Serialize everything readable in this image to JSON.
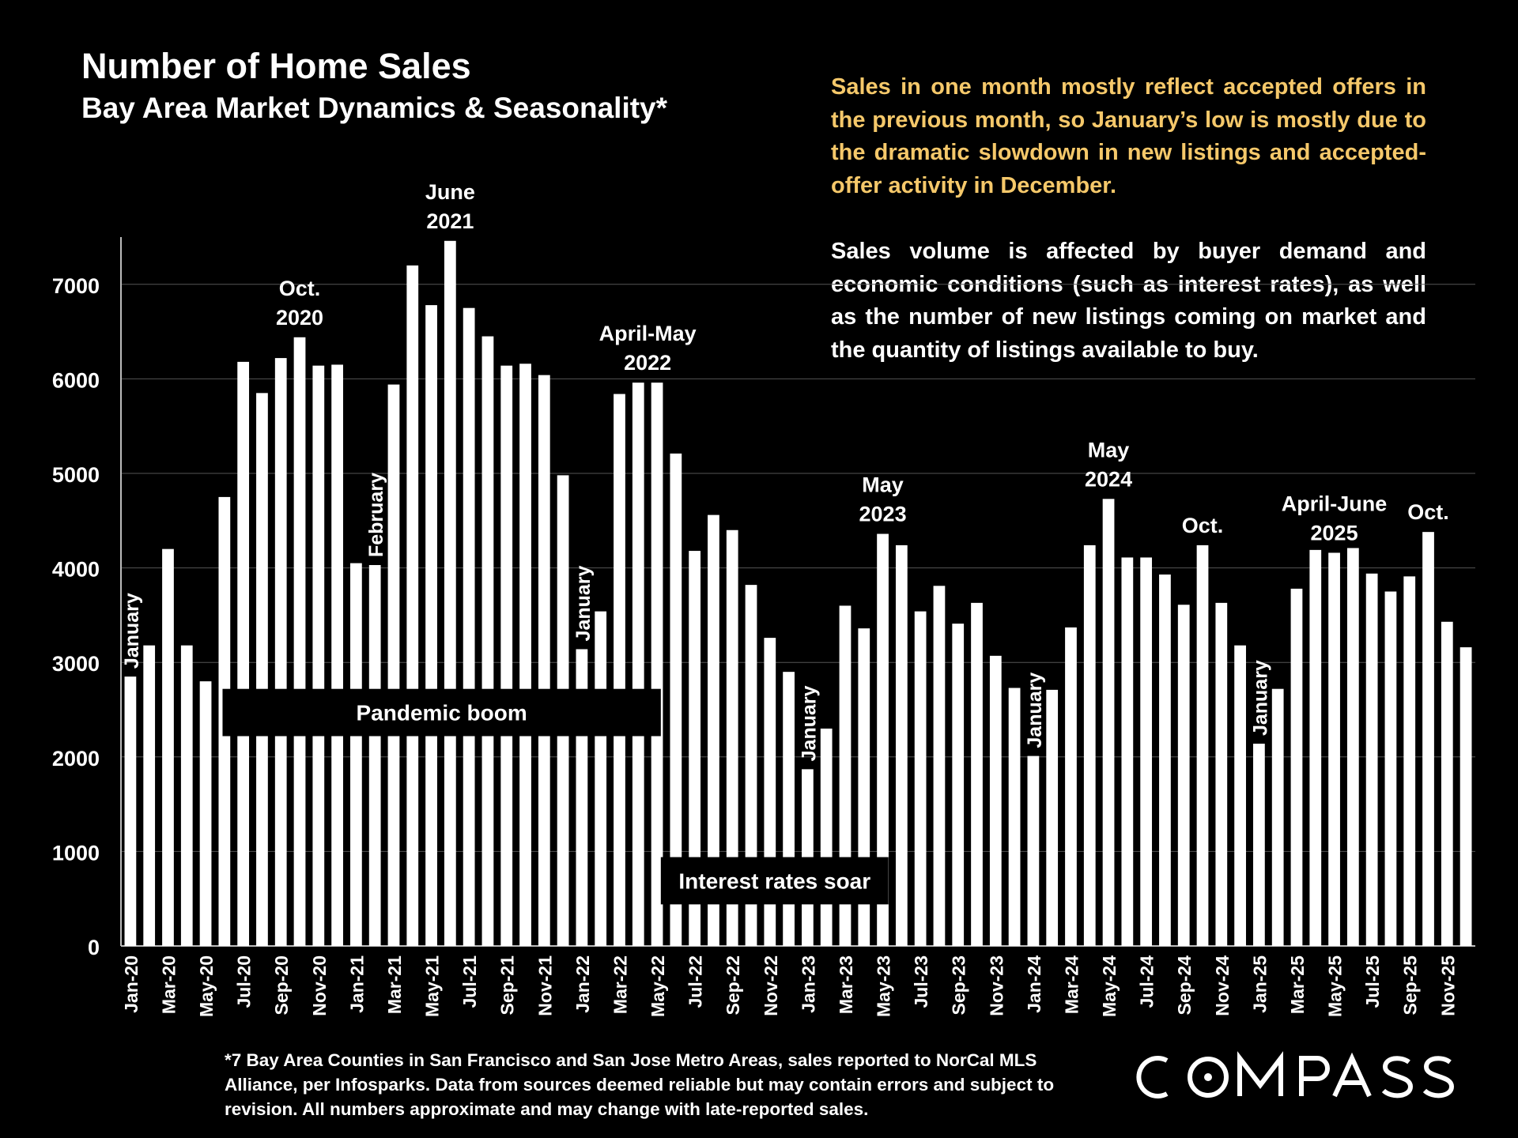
{
  "header": {
    "title": "Number of Home Sales",
    "subtitle": "Bay Area Market Dynamics & Seasonality*"
  },
  "notes": {
    "highlight": "Sales in one month mostly reflect accepted offers in the previous month, so January’s low is mostly due to the dramatic slowdown in new listings and accepted-offer activity in December.",
    "body": "Sales volume is affected by buyer demand and economic conditions (such as interest rates), as well as the number of new listings coming on market and the quantity of listings available to buy."
  },
  "footnote": "*7 Bay Area Counties in San Francisco and San Jose Metro Areas, sales reported to NorCal MLS Alliance, per Infosparks.  Data from sources deemed reliable but may contain errors and subject to revision. All numbers approximate and may change with late-reported sales.",
  "logo": {
    "text": "COMPASS",
    "icon": "compass-o-icon"
  },
  "colors": {
    "background": "#000000",
    "bar": "#ffffff",
    "highlight_text": "#f5c86a",
    "text": "#ffffff"
  },
  "chart_data": {
    "type": "bar",
    "title": "Number of Home Sales",
    "subtitle": "Bay Area Market Dynamics & Seasonality*",
    "xlabel": "",
    "ylabel": "",
    "ylim": [
      0,
      7500
    ],
    "yticks": [
      0,
      1000,
      2000,
      3000,
      4000,
      5000,
      6000,
      7000
    ],
    "grid": true,
    "legend": "none",
    "x_tick_labels": [
      "Jan-20",
      "Mar-20",
      "May-20",
      "Jul-20",
      "Sep-20",
      "Nov-20",
      "Jan-21",
      "Mar-21",
      "May-21",
      "Jul-21",
      "Sep-21",
      "Nov-21",
      "Jan-22",
      "Mar-22",
      "May-22",
      "Jul-22",
      "Sep-22",
      "Nov-22",
      "Jan-23",
      "Mar-23",
      "May-23",
      "Jul-23",
      "Sep-23",
      "Nov-23",
      "Jan-24",
      "Mar-24",
      "May-24",
      "Jul-24",
      "Sep-24",
      "Nov-24",
      "Jan-25",
      "Mar-25",
      "May-25",
      "Jul-25",
      "Sep-25",
      "Nov-25"
    ],
    "categories": [
      "Jan-20",
      "Feb-20",
      "Mar-20",
      "Apr-20",
      "May-20",
      "Jun-20",
      "Jul-20",
      "Aug-20",
      "Sep-20",
      "Oct-20",
      "Nov-20",
      "Dec-20",
      "Jan-21",
      "Feb-21",
      "Mar-21",
      "Apr-21",
      "May-21",
      "Jun-21",
      "Jul-21",
      "Aug-21",
      "Sep-21",
      "Oct-21",
      "Nov-21",
      "Dec-21",
      "Jan-22",
      "Feb-22",
      "Mar-22",
      "Apr-22",
      "May-22",
      "Jun-22",
      "Jul-22",
      "Aug-22",
      "Sep-22",
      "Oct-22",
      "Nov-22",
      "Dec-22",
      "Jan-23",
      "Feb-23",
      "Mar-23",
      "Apr-23",
      "May-23",
      "Jun-23",
      "Jul-23",
      "Aug-23",
      "Sep-23",
      "Oct-23",
      "Nov-23",
      "Dec-23",
      "Jan-24",
      "Feb-24",
      "Mar-24",
      "Apr-24",
      "May-24",
      "Jun-24",
      "Jul-24",
      "Aug-24",
      "Sep-24",
      "Oct-24",
      "Nov-24",
      "Dec-24",
      "Jan-25",
      "Feb-25",
      "Mar-25",
      "Apr-25",
      "May-25",
      "Jun-25",
      "Jul-25",
      "Aug-25",
      "Sep-25",
      "Oct-25",
      "Nov-25",
      "Dec-25"
    ],
    "values": [
      2850,
      3180,
      4200,
      3180,
      2800,
      4750,
      6180,
      5850,
      6220,
      6440,
      6140,
      6150,
      4050,
      4030,
      5940,
      7200,
      6780,
      7460,
      6750,
      6450,
      6140,
      6160,
      6040,
      4980,
      3140,
      3540,
      5840,
      5960,
      5960,
      5210,
      4180,
      4560,
      4400,
      3820,
      3260,
      2900,
      1870,
      2300,
      3600,
      3360,
      4360,
      4240,
      3540,
      3810,
      3410,
      3630,
      3070,
      2730,
      2010,
      2710,
      3370,
      4240,
      4730,
      4110,
      4110,
      3930,
      3610,
      4240,
      3630,
      3180,
      2140,
      2720,
      3780,
      4190,
      4160,
      4210,
      3940,
      3750,
      3910,
      4380,
      3430,
      3160
    ],
    "annotations": [
      {
        "text": "January",
        "index": 0,
        "rotated": true
      },
      {
        "text": "Oct.\n2020",
        "index": 9
      },
      {
        "text": "February",
        "index": 13,
        "rotated": true
      },
      {
        "text": "June\n2021",
        "index": 17
      },
      {
        "text": "January",
        "index": 24,
        "rotated": true
      },
      {
        "text": "April-May\n2022",
        "index": 27.5
      },
      {
        "text": "January",
        "index": 36,
        "rotated": true
      },
      {
        "text": "May\n2023",
        "index": 40
      },
      {
        "text": "January",
        "index": 48,
        "rotated": true
      },
      {
        "text": "May\n2024",
        "index": 52
      },
      {
        "text": "Oct.",
        "index": 57
      },
      {
        "text": "January",
        "index": 60,
        "rotated": true
      },
      {
        "text": "April-June\n2025",
        "index": 64
      },
      {
        "text": "Oct.",
        "index": 69
      }
    ],
    "bands": [
      {
        "text": "Pandemic boom",
        "from_index": 5.4,
        "to_index": 28.7,
        "y_from": 2220,
        "y_to": 2720
      },
      {
        "text": "Interest rates soar",
        "from_index": 28.7,
        "to_index": 40.8,
        "y_from": 440,
        "y_to": 940
      }
    ]
  }
}
